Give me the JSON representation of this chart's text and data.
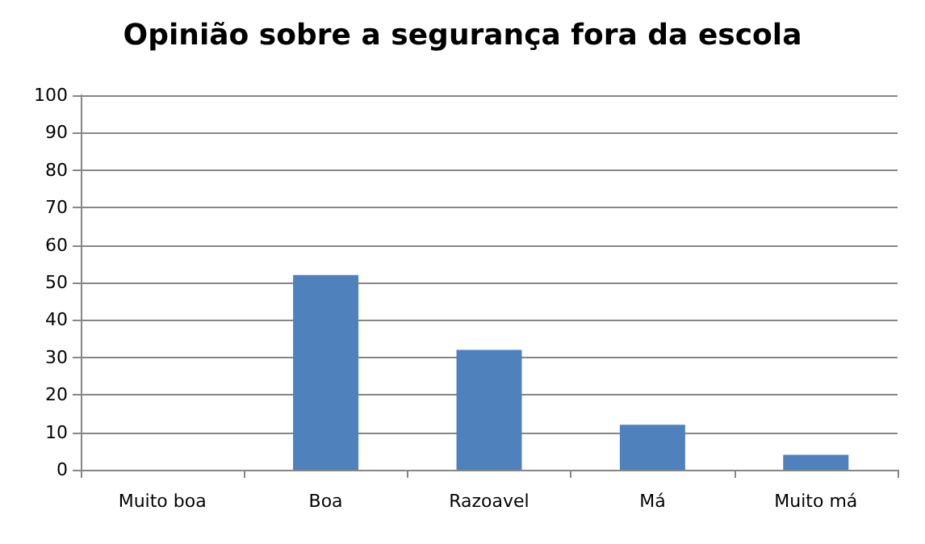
{
  "chart_data": {
    "type": "bar",
    "title": "Opinião sobre a segurança fora da escola",
    "categories": [
      "Muito boa",
      "Boa",
      "Razoavel",
      "Má",
      "Muito má"
    ],
    "values": [
      0,
      52,
      32,
      12,
      4
    ],
    "color": "#4f81bd",
    "ylim": [
      0,
      100
    ],
    "yticks": [
      0,
      10,
      20,
      30,
      40,
      50,
      60,
      70,
      80,
      90,
      100
    ],
    "grid": "y"
  }
}
